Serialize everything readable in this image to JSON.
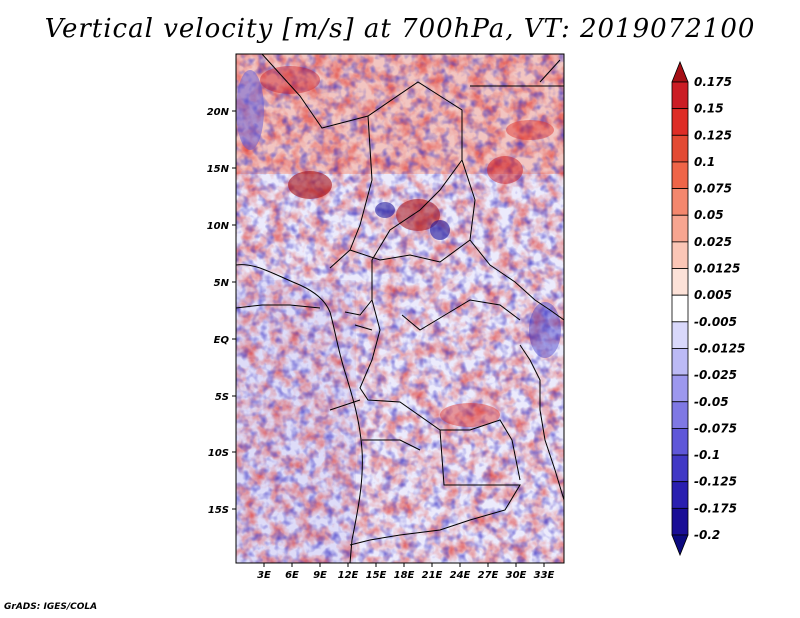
{
  "title": "Vertical velocity [m/s] at 700hPa, VT: 2019072100",
  "footer": "GrADS: IGES/COLA",
  "lat_labels": [
    "20N",
    "15N",
    "10N",
    "5N",
    "EQ",
    "5S",
    "10S",
    "15S"
  ],
  "lon_labels": [
    "3E",
    "6E",
    "9E",
    "12E",
    "15E",
    "18E",
    "21E",
    "24E",
    "27E",
    "30E",
    "33E"
  ],
  "colorbar": {
    "labels": [
      "0.175",
      "0.15",
      "0.125",
      "0.1",
      "0.075",
      "0.05",
      "0.025",
      "0.0125",
      "0.005",
      "-0.005",
      "-0.0125",
      "-0.025",
      "-0.05",
      "-0.075",
      "-0.1",
      "-0.125",
      "-0.175",
      "-0.2"
    ],
    "colors": [
      "#a50f15",
      "#cb1d25",
      "#de2d26",
      "#e34a33",
      "#ef6548",
      "#f4876d",
      "#f7a590",
      "#fbc6b6",
      "#fde2d8",
      "#ffffff",
      "#d9d8fb",
      "#bcbaf5",
      "#9d98ee",
      "#7f78e4",
      "#5f57d8",
      "#4138c5",
      "#2a1fb0",
      "#1a0e96",
      "#0c0a80"
    ]
  }
}
